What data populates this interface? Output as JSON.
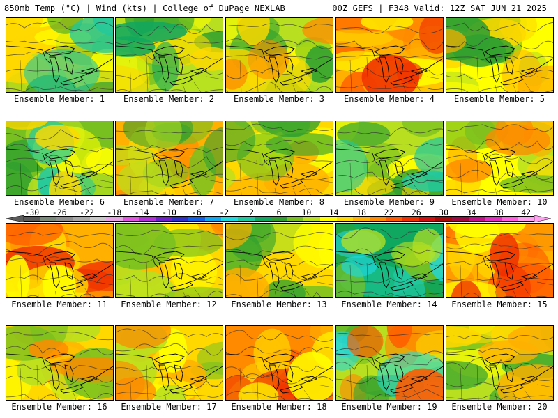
{
  "header": {
    "left": "850mb Temp (°C) | Wind (kts) | College of DuPage NEXLAB",
    "right": "00Z GEFS | F348 Valid: 12Z SAT JUN 21 2025"
  },
  "colorbar": {
    "ticks": [
      "-30",
      "-26",
      "-22",
      "-18",
      "-14",
      "-10",
      "-6",
      "-2",
      "2",
      "6",
      "10",
      "14",
      "18",
      "22",
      "26",
      "30",
      "34",
      "38",
      "42"
    ],
    "colors": [
      "#5a5a5a",
      "#7a8a7a",
      "#8f8f8f",
      "#a8a8a8",
      "#c8c8c8",
      "#e6a6e6",
      "#e055e0",
      "#b230d8",
      "#7020c8",
      "#3030c8",
      "#1060e8",
      "#10a8f0",
      "#20d8e0",
      "#20c8a0",
      "#10a860",
      "#30a030",
      "#78c020",
      "#b8e020",
      "#ffff00",
      "#ffd800",
      "#ffb000",
      "#ff8a00",
      "#ff5a00",
      "#f03000",
      "#d01010",
      "#a80808",
      "#a00a40",
      "#c0108a",
      "#e030c0",
      "#ff60e0",
      "#ffa0f0"
    ]
  },
  "members": [
    {
      "label": "Ensemble Member: 1",
      "palette": [
        "#78c020",
        "#b8e020",
        "#ffff00",
        "#ffd800",
        "#30a030",
        "#20c8a0"
      ],
      "tint": "#ffd800"
    },
    {
      "label": "Ensemble Member: 2",
      "palette": [
        "#b8e020",
        "#78c020",
        "#ffff00",
        "#30a030",
        "#ffd800",
        "#10a860"
      ],
      "tint": "#b8e020"
    },
    {
      "label": "Ensemble Member: 3",
      "palette": [
        "#ffff00",
        "#78c020",
        "#b8e020",
        "#30a030",
        "#ffd800",
        "#ff8a00"
      ],
      "tint": "#b8e020"
    },
    {
      "label": "Ensemble Member: 4",
      "palette": [
        "#ff8a00",
        "#ffb000",
        "#ff5a00",
        "#ffd800",
        "#ffff00",
        "#f03000"
      ],
      "tint": "#ffb000"
    },
    {
      "label": "Ensemble Member: 5",
      "palette": [
        "#b8e020",
        "#ffff00",
        "#78c020",
        "#ffd800",
        "#30a030",
        "#ffb000"
      ],
      "tint": "#ffff00"
    },
    {
      "label": "Ensemble Member: 6",
      "palette": [
        "#78c020",
        "#30a030",
        "#b8e020",
        "#ffff00",
        "#20c8a0",
        "#ffd800"
      ],
      "tint": "#78c020"
    },
    {
      "label": "Ensemble Member: 7",
      "palette": [
        "#ffb000",
        "#ffd800",
        "#ff8a00",
        "#78c020",
        "#30a030",
        "#b8e020"
      ],
      "tint": "#ffb000"
    },
    {
      "label": "Ensemble Member: 8",
      "palette": [
        "#ffd800",
        "#b8e020",
        "#ffff00",
        "#ffb000",
        "#78c020",
        "#30a030"
      ],
      "tint": "#ffd800"
    },
    {
      "label": "Ensemble Member: 9",
      "palette": [
        "#b8e020",
        "#78c020",
        "#ffff00",
        "#30a030",
        "#ffd800",
        "#20c8a0"
      ],
      "tint": "#b8e020"
    },
    {
      "label": "Ensemble Member: 10",
      "palette": [
        "#ffff00",
        "#b8e020",
        "#ffd800",
        "#ffb000",
        "#78c020",
        "#ff8a00"
      ],
      "tint": "#ffff00"
    },
    {
      "label": "Ensemble Member: 11",
      "palette": [
        "#ffb000",
        "#ff8a00",
        "#ffd800",
        "#ff5a00",
        "#f03000",
        "#ffff00"
      ],
      "tint": "#ffb000"
    },
    {
      "label": "Ensemble Member: 12",
      "palette": [
        "#ffd800",
        "#ffb000",
        "#ffff00",
        "#ff8a00",
        "#b8e020",
        "#78c020"
      ],
      "tint": "#ffd800"
    },
    {
      "label": "Ensemble Member: 13",
      "palette": [
        "#ffd800",
        "#b8e020",
        "#78c020",
        "#ffff00",
        "#30a030",
        "#ffb000"
      ],
      "tint": "#ffd800"
    },
    {
      "label": "Ensemble Member: 14",
      "palette": [
        "#30a030",
        "#20c8a0",
        "#10a860",
        "#78c020",
        "#20d8e0",
        "#b8e020"
      ],
      "tint": "#10a860"
    },
    {
      "label": "Ensemble Member: 15",
      "palette": [
        "#ffb000",
        "#ff8a00",
        "#ffd800",
        "#ff5a00",
        "#ffff00",
        "#f03000"
      ],
      "tint": "#ffb000"
    },
    {
      "label": "Ensemble Member: 16",
      "palette": [
        "#ffd800",
        "#ffff00",
        "#ffb000",
        "#b8e020",
        "#78c020",
        "#ff8a00"
      ],
      "tint": "#ffd800"
    },
    {
      "label": "Ensemble Member: 17",
      "palette": [
        "#ffd800",
        "#78c020",
        "#ffb000",
        "#ffff00",
        "#b8e020",
        "#ff8a00"
      ],
      "tint": "#ffd800"
    },
    {
      "label": "Ensemble Member: 18",
      "palette": [
        "#ffb000",
        "#ff8a00",
        "#ff5a00",
        "#ffd800",
        "#f03000",
        "#ffff00"
      ],
      "tint": "#ff8a00"
    },
    {
      "label": "Ensemble Member: 19",
      "palette": [
        "#78c020",
        "#ff8a00",
        "#ffd800",
        "#30a030",
        "#20d8e0",
        "#ff5a00"
      ],
      "tint": "#b8e020"
    },
    {
      "label": "Ensemble Member: 20",
      "palette": [
        "#b8e020",
        "#ffff00",
        "#78c020",
        "#ffd800",
        "#30a030",
        "#ffb000"
      ],
      "tint": "#b8e020"
    }
  ]
}
